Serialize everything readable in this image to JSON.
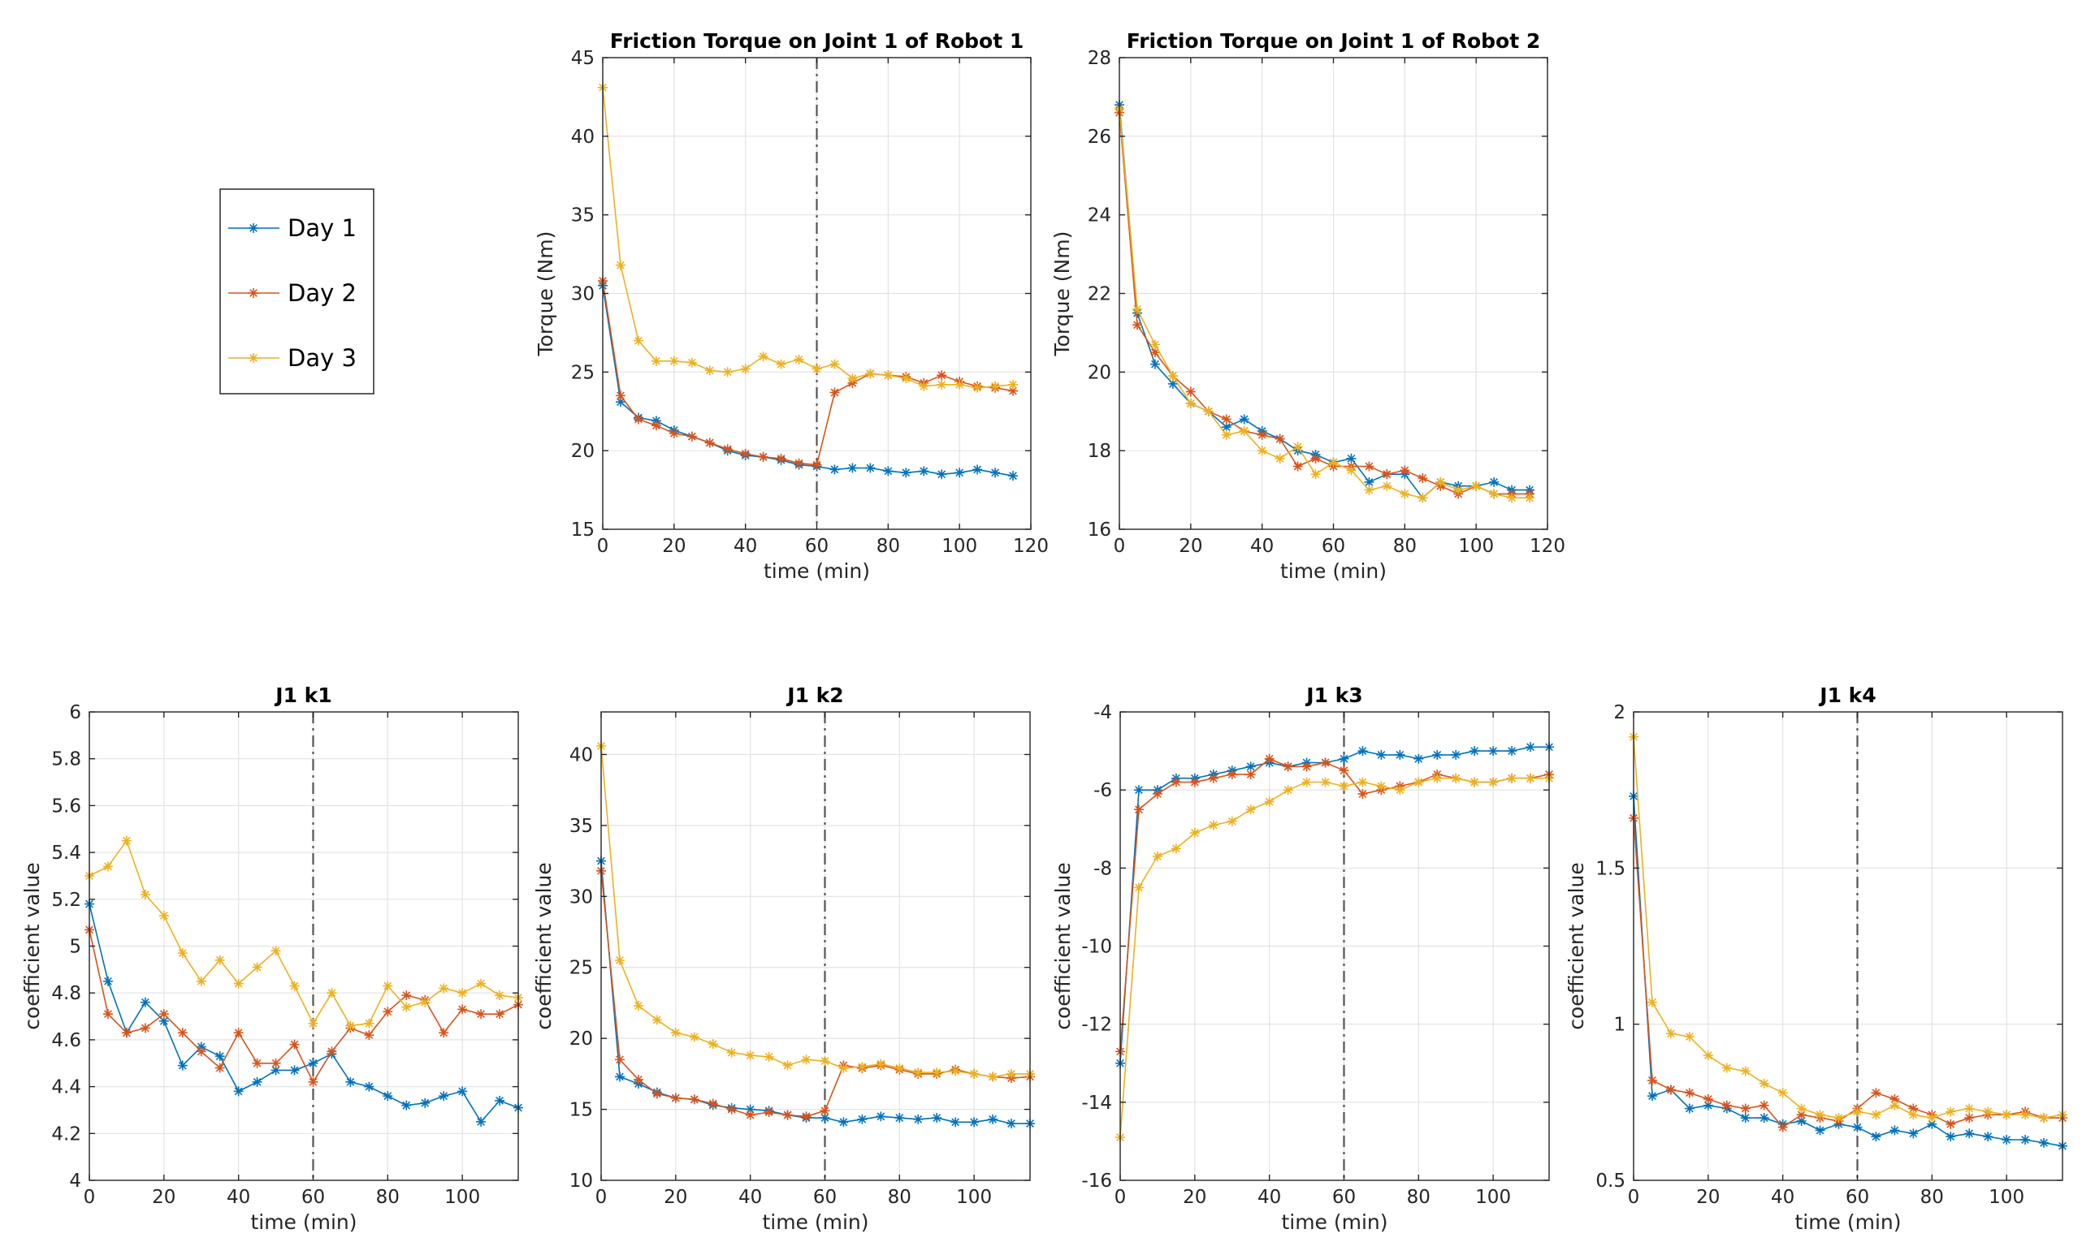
{
  "legend": {
    "entries": [
      "Day 1",
      "Day 2",
      "Day 3"
    ],
    "colors": [
      "#0072BD",
      "#D95319",
      "#EDB120"
    ]
  },
  "chart_data": [
    {
      "type": "line",
      "id": "robot1",
      "title": "Friction Torque on Joint 1 of Robot 1",
      "xlabel": "time (min)",
      "ylabel": "Torque (Nm)",
      "xlim": [
        0,
        120
      ],
      "ylim": [
        15,
        45
      ],
      "xticks": [
        0,
        20,
        40,
        60,
        80,
        100,
        120
      ],
      "yticks": [
        15,
        20,
        25,
        30,
        35,
        40,
        45
      ],
      "vline": 60,
      "x": [
        0,
        5,
        10,
        15,
        20,
        25,
        30,
        35,
        40,
        45,
        50,
        55,
        60,
        65,
        70,
        75,
        80,
        85,
        90,
        95,
        100,
        105,
        110,
        115
      ],
      "series": [
        {
          "name": "Day 1",
          "values": [
            30.5,
            23.1,
            22.1,
            21.9,
            21.3,
            20.9,
            20.5,
            20.0,
            19.7,
            19.6,
            19.4,
            19.1,
            19.0,
            18.8,
            18.9,
            18.9,
            18.7,
            18.6,
            18.7,
            18.5,
            18.6,
            18.8,
            18.6,
            18.4
          ]
        },
        {
          "name": "Day 2",
          "values": [
            30.8,
            23.5,
            22.0,
            21.6,
            21.1,
            20.9,
            20.5,
            20.1,
            19.8,
            19.6,
            19.5,
            19.2,
            19.1,
            23.7,
            24.3,
            24.9,
            24.8,
            24.7,
            24.3,
            24.8,
            24.4,
            24.1,
            24.0,
            23.8
          ]
        },
        {
          "name": "Day 3",
          "values": [
            43.1,
            31.8,
            27.0,
            25.7,
            25.7,
            25.6,
            25.1,
            25.0,
            25.2,
            26.0,
            25.5,
            25.8,
            25.2,
            25.5,
            24.6,
            24.9,
            24.8,
            24.6,
            24.1,
            24.2,
            24.2,
            24.0,
            24.1,
            24.2
          ]
        }
      ]
    },
    {
      "type": "line",
      "id": "robot2",
      "title": "Friction Torque on Joint 1 of Robot 2",
      "xlabel": "time (min)",
      "ylabel": "Torque (Nm)",
      "xlim": [
        0,
        120
      ],
      "ylim": [
        16,
        28
      ],
      "xticks": [
        0,
        20,
        40,
        60,
        80,
        100,
        120
      ],
      "yticks": [
        16,
        18,
        20,
        22,
        24,
        26,
        28
      ],
      "x": [
        0,
        5,
        10,
        15,
        20,
        25,
        30,
        35,
        40,
        45,
        50,
        55,
        60,
        65,
        70,
        75,
        80,
        85,
        90,
        95,
        100,
        105,
        110,
        115
      ],
      "series": [
        {
          "name": "Day 1",
          "values": [
            26.8,
            21.5,
            20.2,
            19.7,
            19.2,
            19.0,
            18.6,
            18.8,
            18.5,
            18.3,
            18.0,
            17.9,
            17.7,
            17.8,
            17.2,
            17.4,
            17.4,
            16.8,
            17.2,
            17.1,
            17.1,
            17.2,
            17.0,
            17.0
          ]
        },
        {
          "name": "Day 2",
          "values": [
            26.6,
            21.2,
            20.5,
            19.9,
            19.5,
            19.0,
            18.8,
            18.5,
            18.4,
            18.3,
            17.6,
            17.8,
            17.6,
            17.6,
            17.6,
            17.4,
            17.5,
            17.3,
            17.1,
            16.9,
            17.1,
            16.9,
            16.9,
            16.9
          ]
        },
        {
          "name": "Day 3",
          "values": [
            26.7,
            21.6,
            20.7,
            19.9,
            19.2,
            19.0,
            18.4,
            18.5,
            18.0,
            17.8,
            18.1,
            17.4,
            17.7,
            17.5,
            17.0,
            17.1,
            16.9,
            16.8,
            17.2,
            17.0,
            17.1,
            16.9,
            16.8,
            16.8
          ]
        }
      ]
    },
    {
      "type": "line",
      "id": "k1",
      "title": "J1 k1",
      "xlabel": "time (min)",
      "ylabel": "coefficient value",
      "xlim": [
        0,
        115
      ],
      "ylim": [
        4,
        6
      ],
      "xticks": [
        0,
        20,
        40,
        60,
        80,
        100
      ],
      "yticks": [
        4,
        4.2,
        4.4,
        4.6,
        4.8,
        5,
        5.2,
        5.4,
        5.6,
        5.8,
        6
      ],
      "vline": 60,
      "x": [
        0,
        5,
        10,
        15,
        20,
        25,
        30,
        35,
        40,
        45,
        50,
        55,
        60,
        65,
        70,
        75,
        80,
        85,
        90,
        95,
        100,
        105,
        110,
        115
      ],
      "series": [
        {
          "name": "Day 1",
          "values": [
            5.18,
            4.85,
            4.63,
            4.76,
            4.68,
            4.49,
            4.57,
            4.53,
            4.38,
            4.42,
            4.47,
            4.47,
            4.5,
            4.54,
            4.42,
            4.4,
            4.36,
            4.32,
            4.33,
            4.36,
            4.38,
            4.25,
            4.34,
            4.31
          ]
        },
        {
          "name": "Day 2",
          "values": [
            5.07,
            4.71,
            4.63,
            4.65,
            4.71,
            4.63,
            4.55,
            4.48,
            4.63,
            4.5,
            4.5,
            4.58,
            4.42,
            4.55,
            4.65,
            4.62,
            4.72,
            4.79,
            4.77,
            4.63,
            4.73,
            4.71,
            4.71,
            4.75
          ]
        },
        {
          "name": "Day 3",
          "values": [
            5.3,
            5.34,
            5.45,
            5.22,
            5.13,
            4.97,
            4.85,
            4.94,
            4.84,
            4.91,
            4.98,
            4.83,
            4.67,
            4.8,
            4.66,
            4.67,
            4.83,
            4.74,
            4.76,
            4.82,
            4.8,
            4.84,
            4.79,
            4.78
          ]
        }
      ]
    },
    {
      "type": "line",
      "id": "k2",
      "title": "J1 k2",
      "xlabel": "time (min)",
      "ylabel": "coefficient value",
      "xlim": [
        0,
        115
      ],
      "ylim": [
        10,
        43
      ],
      "xticks": [
        0,
        20,
        40,
        60,
        80,
        100
      ],
      "yticks": [
        10,
        15,
        20,
        25,
        30,
        35,
        40
      ],
      "vline": 60,
      "x": [
        0,
        5,
        10,
        15,
        20,
        25,
        30,
        35,
        40,
        45,
        50,
        55,
        60,
        65,
        70,
        75,
        80,
        85,
        90,
        95,
        100,
        105,
        110,
        115
      ],
      "series": [
        {
          "name": "Day 1",
          "values": [
            32.5,
            17.3,
            16.8,
            16.2,
            15.8,
            15.7,
            15.3,
            15.1,
            15.0,
            14.9,
            14.6,
            14.4,
            14.4,
            14.1,
            14.3,
            14.5,
            14.4,
            14.3,
            14.4,
            14.1,
            14.1,
            14.3,
            14.0,
            14.0
          ]
        },
        {
          "name": "Day 2",
          "values": [
            31.8,
            18.5,
            17.1,
            16.1,
            15.8,
            15.7,
            15.4,
            15.0,
            14.6,
            14.8,
            14.6,
            14.5,
            14.9,
            18.1,
            17.9,
            18.1,
            17.8,
            17.5,
            17.5,
            17.8,
            17.5,
            17.3,
            17.2,
            17.3
          ]
        },
        {
          "name": "Day 3",
          "values": [
            40.6,
            25.5,
            22.3,
            21.3,
            20.4,
            20.1,
            19.6,
            19.0,
            18.8,
            18.7,
            18.1,
            18.5,
            18.4,
            17.9,
            18.0,
            18.2,
            17.9,
            17.6,
            17.6,
            17.7,
            17.5,
            17.3,
            17.5,
            17.5
          ]
        }
      ]
    },
    {
      "type": "line",
      "id": "k3",
      "title": "J1 k3",
      "xlabel": "time (min)",
      "ylabel": "coefficient value",
      "xlim": [
        0,
        115
      ],
      "ylim": [
        -16,
        -4
      ],
      "xticks": [
        0,
        20,
        40,
        60,
        80,
        100
      ],
      "yticks": [
        -16,
        -14,
        -12,
        -10,
        -8,
        -6,
        -4
      ],
      "vline": 60,
      "x": [
        0,
        5,
        10,
        15,
        20,
        25,
        30,
        35,
        40,
        45,
        50,
        55,
        60,
        65,
        70,
        75,
        80,
        85,
        90,
        95,
        100,
        105,
        110,
        115
      ],
      "series": [
        {
          "name": "Day 1",
          "values": [
            -13.0,
            -6.0,
            -6.0,
            -5.7,
            -5.7,
            -5.6,
            -5.5,
            -5.4,
            -5.3,
            -5.4,
            -5.3,
            -5.3,
            -5.2,
            -5.0,
            -5.1,
            -5.1,
            -5.2,
            -5.1,
            -5.1,
            -5.0,
            -5.0,
            -5.0,
            -4.9,
            -4.9
          ]
        },
        {
          "name": "Day 2",
          "values": [
            -12.7,
            -6.5,
            -6.1,
            -5.8,
            -5.8,
            -5.7,
            -5.6,
            -5.6,
            -5.2,
            -5.4,
            -5.4,
            -5.3,
            -5.5,
            -6.1,
            -6.0,
            -5.9,
            -5.8,
            -5.6,
            -5.7,
            -5.8,
            -5.8,
            -5.7,
            -5.7,
            -5.6
          ]
        },
        {
          "name": "Day 3",
          "values": [
            -14.9,
            -8.5,
            -7.7,
            -7.5,
            -7.1,
            -6.9,
            -6.8,
            -6.5,
            -6.3,
            -6.0,
            -5.8,
            -5.8,
            -5.9,
            -5.8,
            -5.9,
            -6.0,
            -5.8,
            -5.7,
            -5.7,
            -5.8,
            -5.8,
            -5.7,
            -5.7,
            -5.7
          ]
        }
      ]
    },
    {
      "type": "line",
      "id": "k4",
      "title": "J1 k4",
      "xlabel": "time (min)",
      "ylabel": "coefficient value",
      "xlim": [
        0,
        115
      ],
      "ylim": [
        0.5,
        2
      ],
      "xticks": [
        0,
        20,
        40,
        60,
        80,
        100
      ],
      "yticks": [
        0.5,
        1,
        1.5,
        2
      ],
      "yticklabels": [
        "0.5",
        "1",
        "1.5",
        "2"
      ],
      "vline": 60,
      "x": [
        0,
        5,
        10,
        15,
        20,
        25,
        30,
        35,
        40,
        45,
        50,
        55,
        60,
        65,
        70,
        75,
        80,
        85,
        90,
        95,
        100,
        105,
        110,
        115
      ],
      "series": [
        {
          "name": "Day 1",
          "values": [
            1.73,
            0.77,
            0.79,
            0.73,
            0.74,
            0.73,
            0.7,
            0.7,
            0.68,
            0.69,
            0.66,
            0.68,
            0.67,
            0.64,
            0.66,
            0.65,
            0.68,
            0.64,
            0.65,
            0.64,
            0.63,
            0.63,
            0.62,
            0.61
          ]
        },
        {
          "name": "Day 2",
          "values": [
            1.66,
            0.82,
            0.79,
            0.78,
            0.76,
            0.74,
            0.73,
            0.74,
            0.67,
            0.71,
            0.7,
            0.69,
            0.73,
            0.78,
            0.76,
            0.73,
            0.71,
            0.68,
            0.7,
            0.71,
            0.71,
            0.72,
            0.7,
            0.7
          ]
        },
        {
          "name": "Day 3",
          "values": [
            1.92,
            1.07,
            0.97,
            0.96,
            0.9,
            0.86,
            0.85,
            0.81,
            0.78,
            0.73,
            0.71,
            0.7,
            0.72,
            0.71,
            0.74,
            0.71,
            0.7,
            0.72,
            0.73,
            0.72,
            0.71,
            0.71,
            0.7,
            0.71
          ]
        }
      ]
    }
  ]
}
